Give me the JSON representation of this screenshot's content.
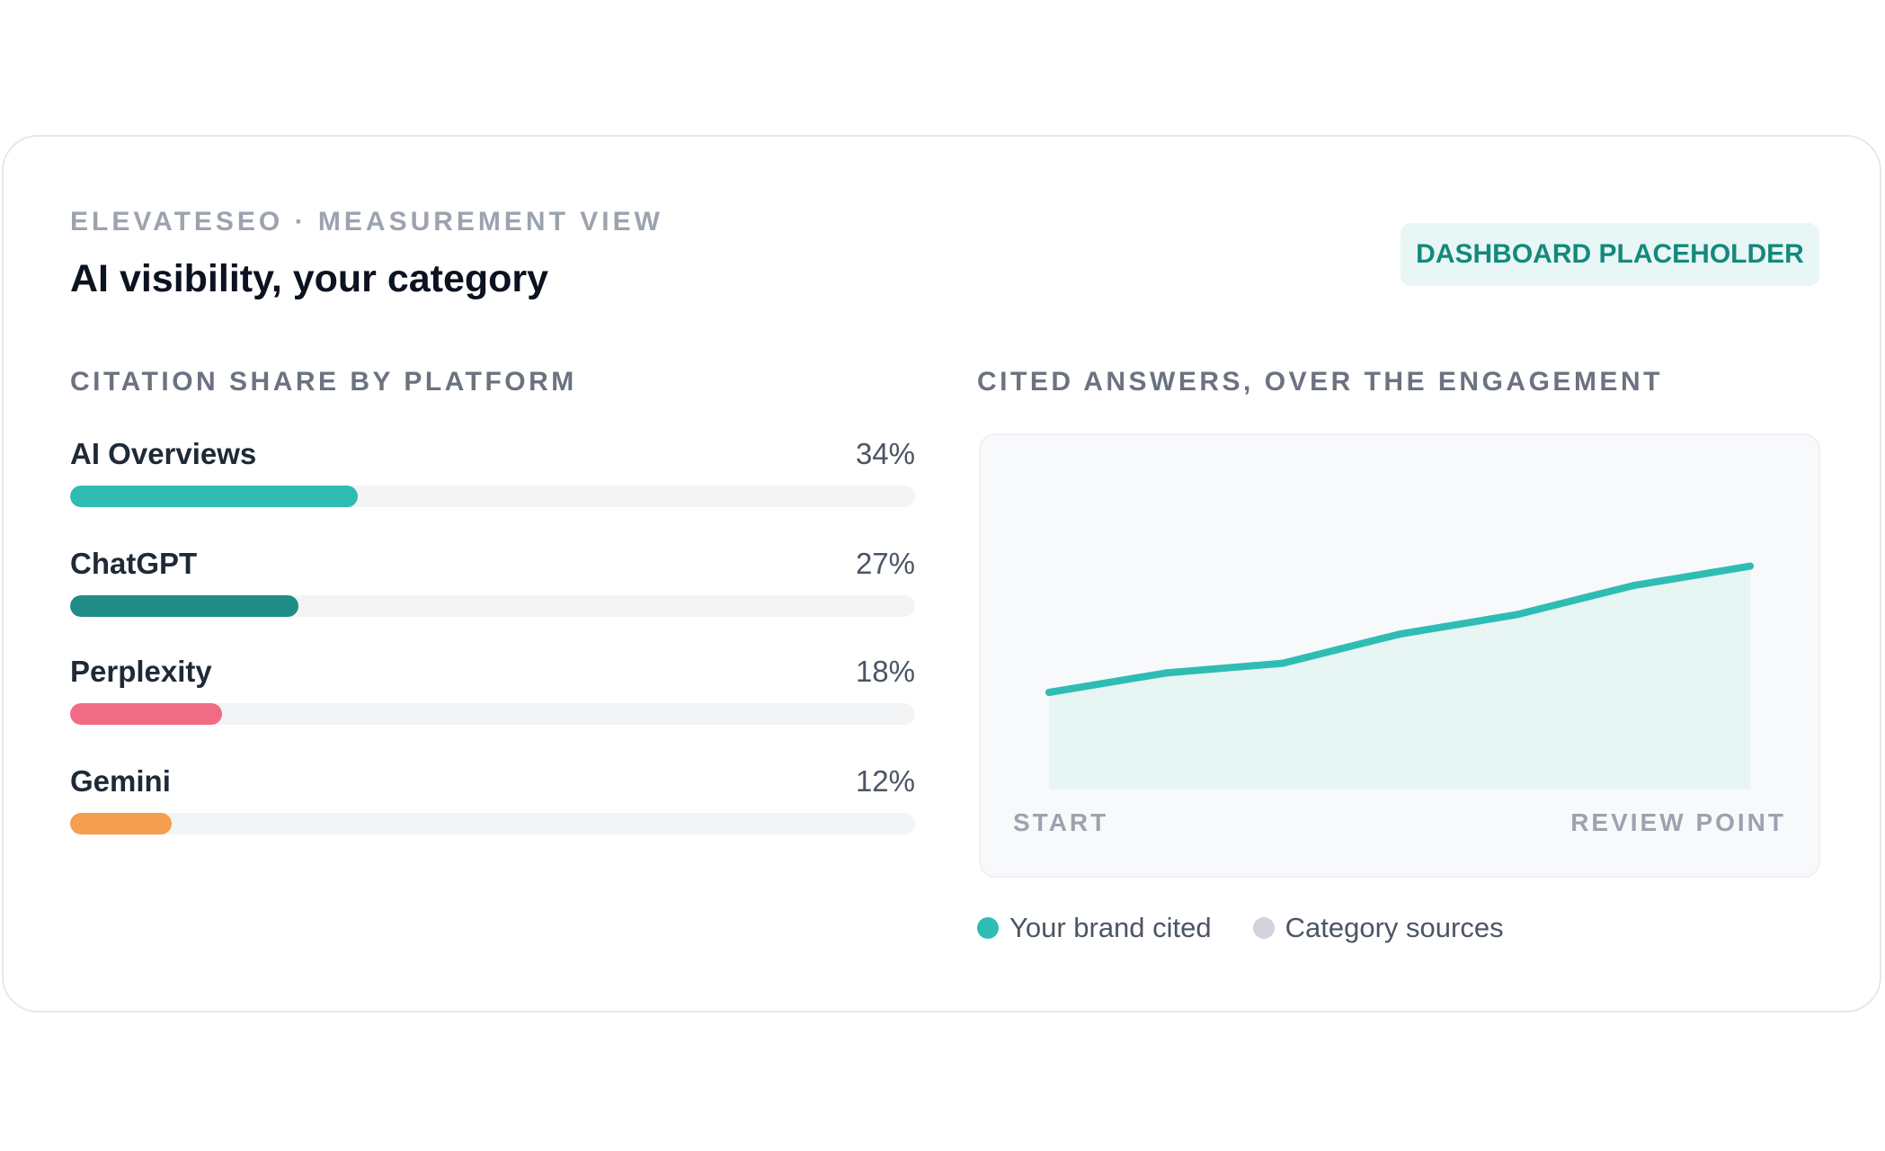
{
  "header": {
    "eyebrow": "ELEVATESEO · MEASUREMENT VIEW",
    "title": "AI visibility, your category",
    "badge": "DASHBOARD PLACEHOLDER"
  },
  "citation_share": {
    "title": "CITATION SHARE BY PLATFORM",
    "items": [
      {
        "label": "AI Overviews",
        "value_text": "34%",
        "value": 34,
        "color": "#2fbdb3"
      },
      {
        "label": "ChatGPT",
        "value_text": "27%",
        "value": 27,
        "color": "#1f8d86"
      },
      {
        "label": "Perplexity",
        "value_text": "18%",
        "value": 18,
        "color": "#f06b84"
      },
      {
        "label": "Gemini",
        "value_text": "12%",
        "value": 12,
        "color": "#f59e4f"
      }
    ]
  },
  "cited_answers": {
    "title": "CITED ANSWERS, OVER THE ENGAGEMENT",
    "x_start_label": "START",
    "x_end_label": "REVIEW POINT",
    "legend": [
      {
        "label": "Your brand cited",
        "color": "#2fbdb3"
      },
      {
        "label": "Category sources",
        "color": "#d1d5db"
      }
    ]
  },
  "chart_data": {
    "type": "area",
    "title": "CITED ANSWERS, OVER THE ENGAGEMENT",
    "categories": [
      "START",
      "",
      "",
      "",
      "",
      "",
      "REVIEW POINT"
    ],
    "series": [
      {
        "name": "Your brand cited",
        "values": [
          0.1,
          0.12,
          0.13,
          0.16,
          0.18,
          0.21,
          0.23
        ],
        "color": "#2fbdb3"
      }
    ],
    "ylim": [
      0,
      0.25
    ],
    "grid": false,
    "legend_position": "bottom-left"
  }
}
